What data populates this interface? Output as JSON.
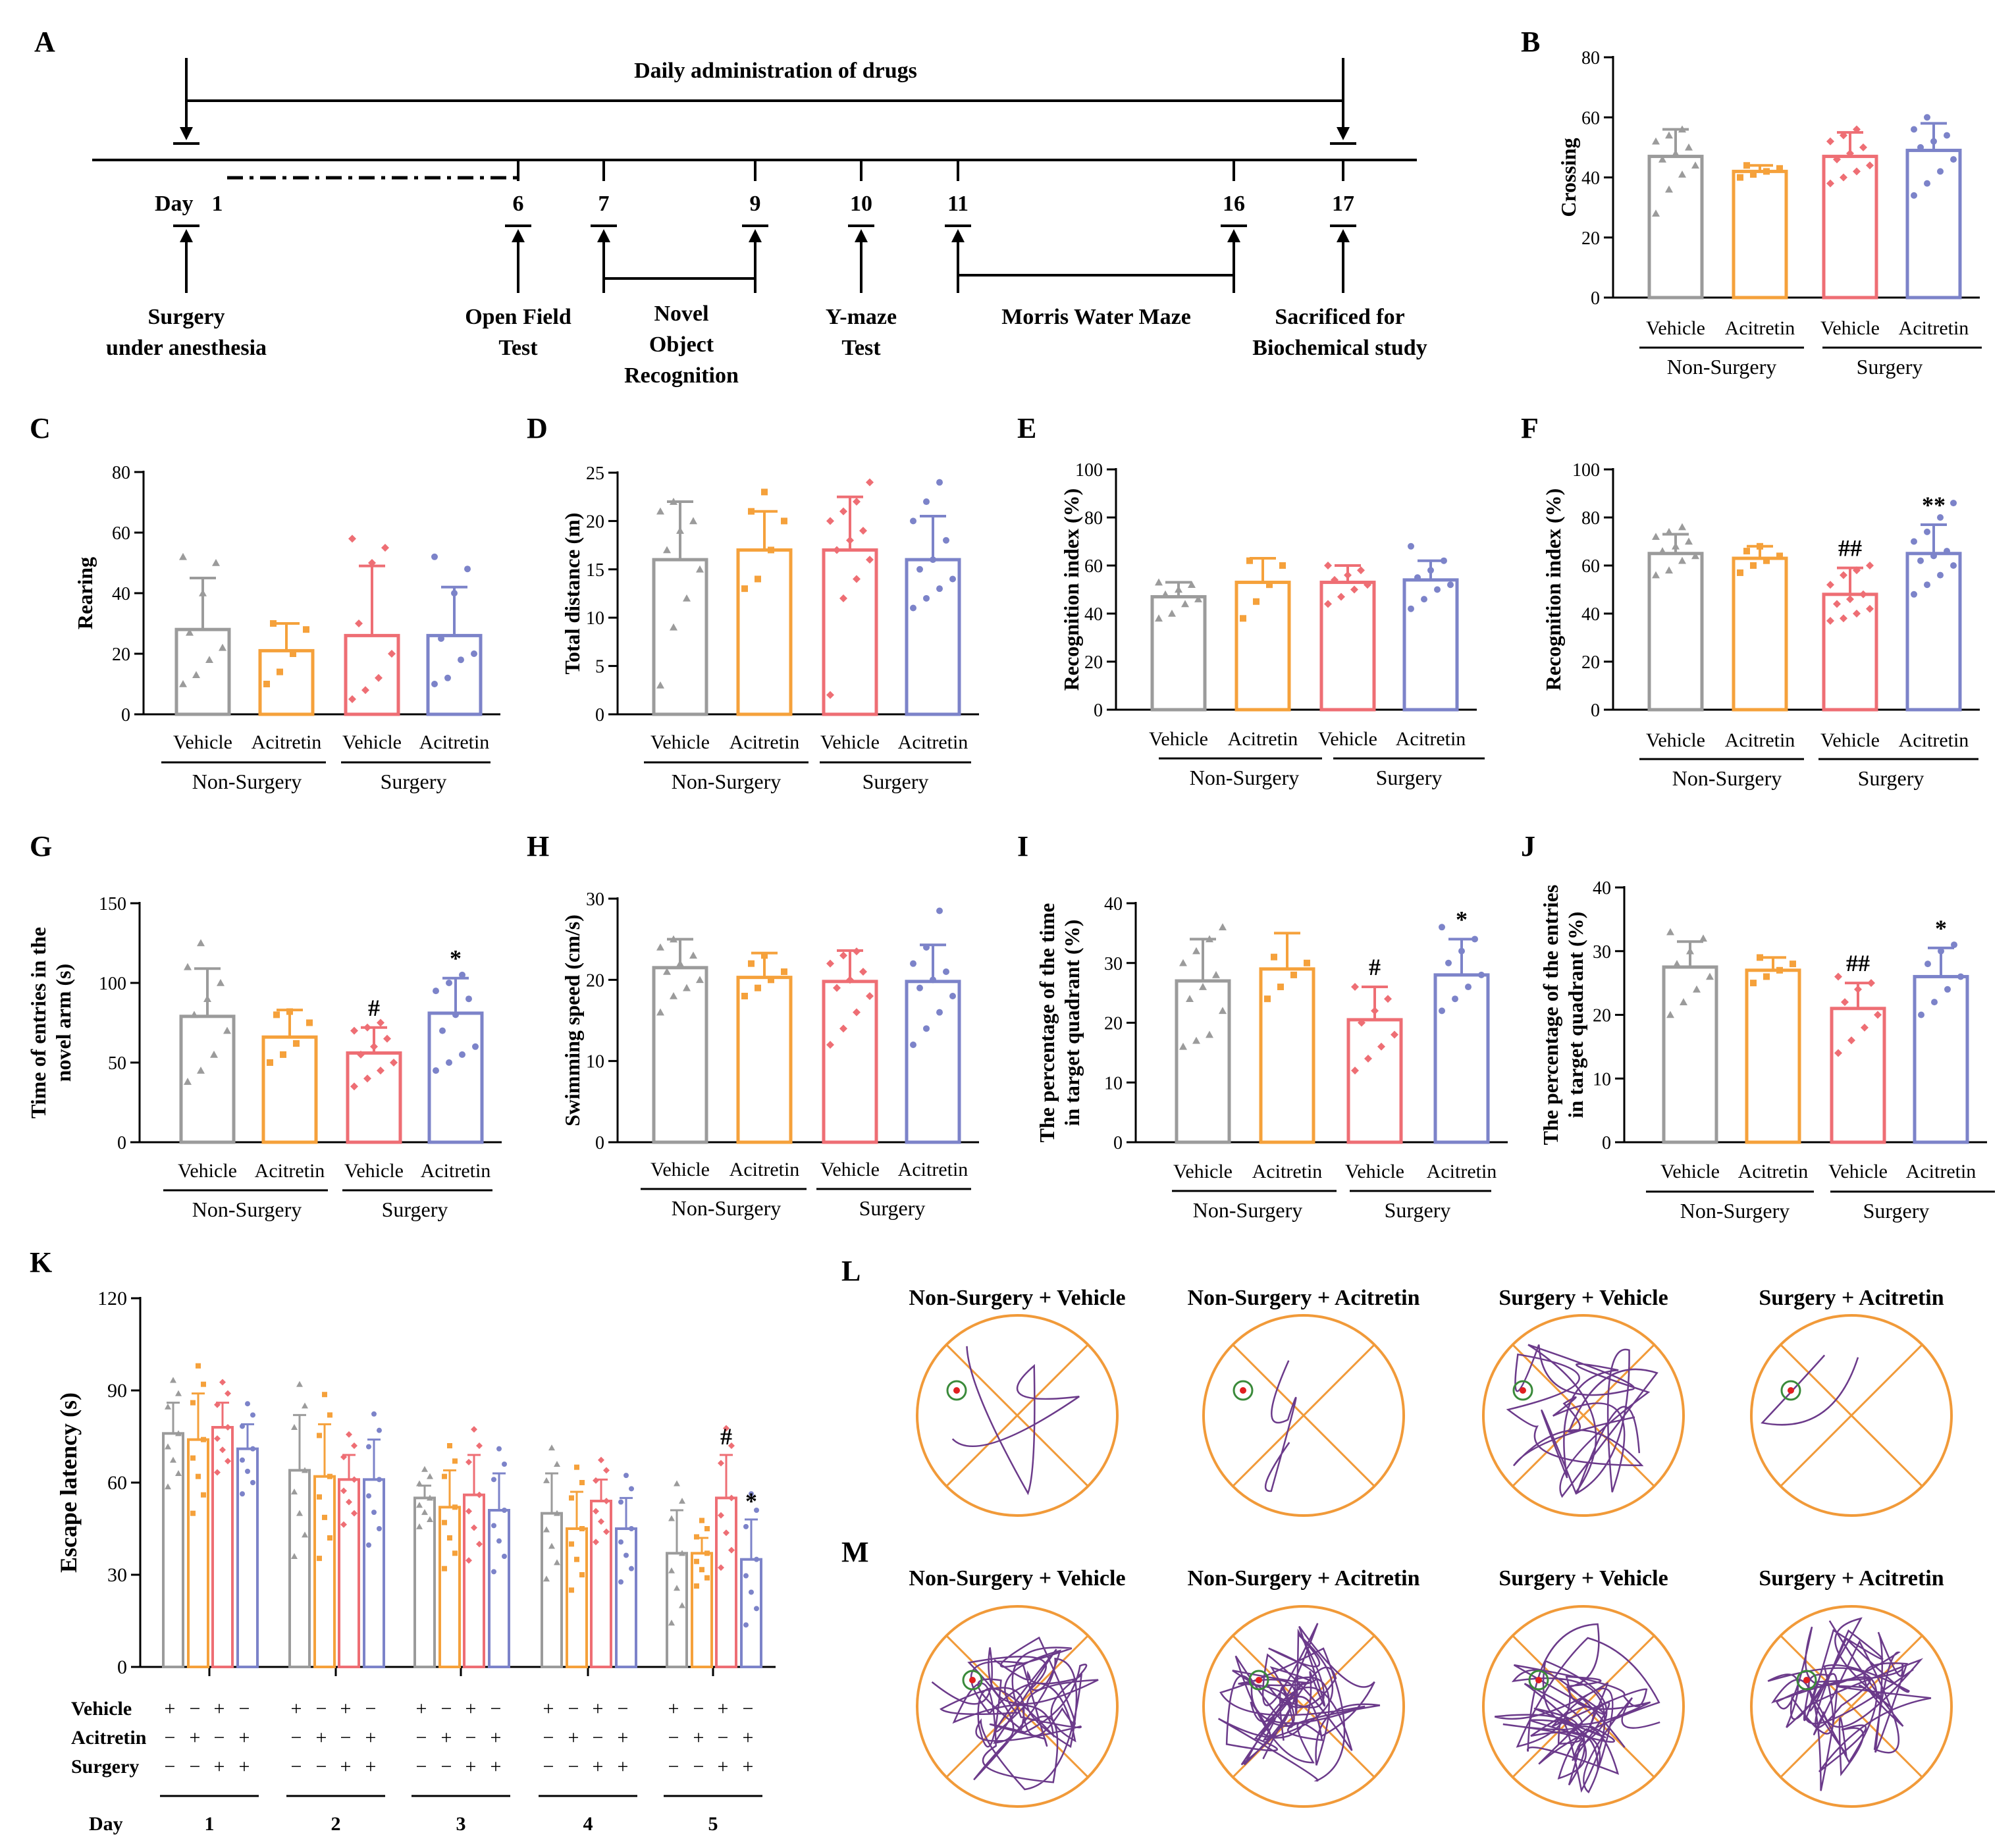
{
  "colors": {
    "grey": "#9b9b9b",
    "orange": "#f5a13b",
    "red": "#ee6e74",
    "blue": "#7c83c9",
    "maze": "#f19a39",
    "path": "#6b3a8a",
    "platform": "#3a8a3a"
  },
  "timeline": {
    "panel_letter": "A",
    "title": "Daily administration of drugs",
    "day_label": "Day",
    "days": [
      "1",
      "6",
      "7",
      "9",
      "10",
      "11",
      "16",
      "17"
    ],
    "events": [
      {
        "lines": [
          "Surgery",
          "under anesthesia"
        ]
      },
      {
        "lines": [
          "Open Field",
          "Test"
        ]
      },
      {
        "lines": [
          "Novel",
          "Object",
          "Recognition"
        ]
      },
      {
        "lines": [
          "Y-maze",
          "Test"
        ]
      },
      {
        "lines": [
          "Morris Water Maze"
        ]
      },
      {
        "lines": [
          "Sacrificed for",
          "Biochemical study"
        ]
      }
    ]
  },
  "group_labels": {
    "treatments": [
      "Vehicle",
      "Acitretin",
      "Vehicle",
      "Acitretin"
    ],
    "groups": [
      "Non-Surgery",
      "Surgery"
    ]
  },
  "chart_data": [
    {
      "panel": "B",
      "type": "bar",
      "ylabel": "Crossing",
      "ylim": [
        0,
        80
      ],
      "ticks": [
        0,
        20,
        40,
        60,
        80
      ],
      "categories": [
        "Vehicle",
        "Acitretin",
        "Vehicle",
        "Acitretin"
      ],
      "groups": [
        "Non-Surgery",
        "Surgery"
      ],
      "values": [
        47,
        42,
        47,
        49
      ],
      "errors": [
        9,
        2,
        8,
        9
      ],
      "annotations": [
        "",
        "",
        "",
        ""
      ],
      "points": [
        [
          28,
          36,
          41,
          44,
          46,
          48,
          50,
          52,
          54,
          56
        ],
        [
          40,
          41,
          42,
          43,
          44
        ],
        [
          38,
          40,
          42,
          44,
          46,
          48,
          50,
          52,
          54,
          56
        ],
        [
          34,
          38,
          42,
          46,
          50,
          52,
          54,
          56,
          60
        ]
      ]
    },
    {
      "panel": "C",
      "type": "bar",
      "ylabel": "Rearing",
      "ylim": [
        0,
        80
      ],
      "ticks": [
        0,
        20,
        40,
        60,
        80
      ],
      "categories": [
        "Vehicle",
        "Acitretin",
        "Vehicle",
        "Acitretin"
      ],
      "groups": [
        "Non-Surgery",
        "Surgery"
      ],
      "values": [
        28,
        21,
        26,
        26
      ],
      "errors": [
        17,
        9,
        23,
        16
      ],
      "annotations": [
        "",
        "",
        "",
        ""
      ],
      "points": [
        [
          10,
          13,
          18,
          22,
          27,
          40,
          50,
          52
        ],
        [
          10,
          14,
          20,
          28,
          30
        ],
        [
          5,
          8,
          12,
          20,
          30,
          50,
          55,
          58
        ],
        [
          10,
          12,
          18,
          20,
          25,
          40,
          48,
          52
        ]
      ]
    },
    {
      "panel": "D",
      "type": "bar",
      "ylabel": "Total distance (m)",
      "ylim": [
        0,
        25
      ],
      "ticks": [
        0,
        5,
        10,
        15,
        20,
        25
      ],
      "categories": [
        "Vehicle",
        "Acitretin",
        "Vehicle",
        "Acitretin"
      ],
      "groups": [
        "Non-Surgery",
        "Surgery"
      ],
      "values": [
        16,
        17,
        17,
        16
      ],
      "errors": [
        6,
        4,
        5.5,
        4.5
      ],
      "annotations": [
        "",
        "",
        "",
        ""
      ],
      "points": [
        [
          3,
          9,
          12,
          15,
          17,
          19,
          20,
          21,
          22
        ],
        [
          13,
          14,
          17,
          20,
          21,
          23
        ],
        [
          2,
          12,
          14,
          16,
          17,
          18,
          19,
          20,
          21,
          22,
          24
        ],
        [
          11,
          12,
          13,
          14,
          15,
          16,
          18,
          20,
          22,
          24
        ]
      ]
    },
    {
      "panel": "E",
      "type": "bar",
      "ylabel": "Recognition index (%)",
      "ylim": [
        0,
        100
      ],
      "ticks": [
        0,
        20,
        40,
        60,
        80,
        100
      ],
      "categories": [
        "Vehicle",
        "Acitretin",
        "Vehicle",
        "Acitretin"
      ],
      "groups": [
        "Non-Surgery",
        "Surgery"
      ],
      "values": [
        47,
        53,
        53,
        54
      ],
      "errors": [
        6,
        10,
        7,
        8
      ],
      "annotations": [
        "",
        "",
        "",
        ""
      ],
      "points": [
        [
          38,
          40,
          44,
          46,
          48,
          50,
          52,
          53
        ],
        [
          38,
          45,
          52,
          60,
          62
        ],
        [
          44,
          47,
          50,
          52,
          54,
          56,
          58,
          60
        ],
        [
          42,
          46,
          50,
          52,
          55,
          58,
          62,
          68
        ]
      ]
    },
    {
      "panel": "F",
      "type": "bar",
      "ylabel": "Recognition index (%)",
      "ylim": [
        0,
        100
      ],
      "ticks": [
        0,
        20,
        40,
        60,
        80,
        100
      ],
      "categories": [
        "Vehicle",
        "Acitretin",
        "Vehicle",
        "Acitretin"
      ],
      "groups": [
        "Non-Surgery",
        "Surgery"
      ],
      "values": [
        65,
        63,
        48,
        65
      ],
      "errors": [
        8,
        5,
        11,
        12
      ],
      "annotations": [
        "",
        "",
        "##",
        "**"
      ],
      "points": [
        [
          56,
          58,
          62,
          64,
          66,
          68,
          70,
          72,
          74,
          76
        ],
        [
          57,
          60,
          62,
          64,
          66,
          68
        ],
        [
          37,
          38,
          40,
          42,
          44,
          46,
          48,
          52,
          56,
          58,
          60
        ],
        [
          48,
          52,
          56,
          60,
          62,
          64,
          66,
          70,
          74,
          80,
          86
        ]
      ]
    },
    {
      "panel": "G",
      "type": "bar",
      "ylabel": [
        "Time of entries in the",
        "novel arm (s)"
      ],
      "ylim": [
        0,
        150
      ],
      "ticks": [
        0,
        50,
        100,
        150
      ],
      "categories": [
        "Vehicle",
        "Acitretin",
        "Vehicle",
        "Acitretin"
      ],
      "groups": [
        "Non-Surgery",
        "Surgery"
      ],
      "values": [
        79,
        66,
        56,
        81
      ],
      "errors": [
        30,
        17,
        16,
        22
      ],
      "annotations": [
        "",
        "",
        "#",
        "*"
      ],
      "points": [
        [
          38,
          45,
          55,
          70,
          80,
          90,
          100,
          110,
          125
        ],
        [
          50,
          55,
          62,
          75,
          80,
          82
        ],
        [
          35,
          40,
          45,
          50,
          55,
          60,
          65,
          70,
          72,
          75
        ],
        [
          45,
          50,
          55,
          60,
          70,
          80,
          90,
          95,
          100,
          105
        ]
      ]
    },
    {
      "panel": "H",
      "type": "bar",
      "ylabel": "Swimming speed (cm/s)",
      "ylim": [
        0,
        30
      ],
      "ticks": [
        0,
        10,
        20,
        30
      ],
      "categories": [
        "Vehicle",
        "Acitretin",
        "Vehicle",
        "Acitretin"
      ],
      "groups": [
        "Non-Surgery",
        "Surgery"
      ],
      "values": [
        21.5,
        20.3,
        19.8,
        19.8
      ],
      "errors": [
        3.5,
        3,
        3.8,
        4.5
      ],
      "annotations": [
        "",
        "",
        "",
        ""
      ],
      "points": [
        [
          16,
          18,
          19,
          20,
          21,
          22,
          23,
          24,
          25
        ],
        [
          18,
          19,
          20,
          21,
          22,
          23
        ],
        [
          12,
          14,
          16,
          18,
          19,
          20,
          21,
          22,
          23,
          23.5
        ],
        [
          12,
          14,
          16,
          18,
          19,
          20,
          21,
          22,
          24,
          28.5
        ]
      ]
    },
    {
      "panel": "I",
      "type": "bar",
      "ylabel": [
        "The percentage of the time",
        "in target quadrant (%)"
      ],
      "ylim": [
        0,
        40
      ],
      "ticks": [
        0,
        10,
        20,
        30,
        40
      ],
      "categories": [
        "Vehicle",
        "Acitretin",
        "Vehicle",
        "Acitretin"
      ],
      "groups": [
        "Non-Surgery",
        "Surgery"
      ],
      "values": [
        27,
        29,
        20.5,
        28
      ],
      "errors": [
        7,
        6,
        5.5,
        6
      ],
      "annotations": [
        "",
        "",
        "#",
        "*"
      ],
      "points": [
        [
          16,
          17,
          18,
          22,
          24,
          26,
          28,
          30,
          32,
          34,
          36
        ],
        [
          24,
          26,
          28,
          30,
          31
        ],
        [
          12,
          14,
          16,
          18,
          20,
          22,
          24,
          26
        ],
        [
          22,
          24,
          26,
          28,
          30,
          32,
          34,
          36
        ]
      ]
    },
    {
      "panel": "J",
      "type": "bar",
      "ylabel": [
        "The percentage of the entries",
        "in target quadrant (%)"
      ],
      "ylim": [
        0,
        40
      ],
      "ticks": [
        0,
        10,
        20,
        30,
        40
      ],
      "categories": [
        "Vehicle",
        "Acitretin",
        "Vehicle",
        "Acitretin"
      ],
      "groups": [
        "Non-Surgery",
        "Surgery"
      ],
      "values": [
        27.5,
        27,
        21,
        26
      ],
      "errors": [
        4,
        2,
        4,
        4.5
      ],
      "annotations": [
        "",
        "",
        "##",
        "*"
      ],
      "points": [
        [
          20,
          22,
          24,
          26,
          28,
          30,
          32,
          33
        ],
        [
          25,
          26,
          27,
          28,
          29
        ],
        [
          14,
          16,
          18,
          20,
          22,
          24,
          25,
          26
        ],
        [
          20,
          22,
          24,
          26,
          28,
          30,
          31
        ]
      ]
    },
    {
      "panel": "K",
      "type": "bar",
      "ylabel": "Escape latency (s)",
      "ylim": [
        0,
        120
      ],
      "ticks": [
        0,
        30,
        60,
        90,
        120
      ],
      "xlabel": "Day",
      "days": [
        "1",
        "2",
        "3",
        "4",
        "5"
      ],
      "series": [
        {
          "name": "Non-Surgery + Vehicle",
          "values": [
            76,
            64,
            55,
            50,
            37
          ],
          "errors": [
            10,
            18,
            4,
            13,
            14
          ]
        },
        {
          "name": "Non-Surgery + Acitretin",
          "values": [
            74,
            62,
            52,
            45,
            37
          ],
          "errors": [
            15,
            17,
            12,
            12,
            5
          ]
        },
        {
          "name": "Surgery + Vehicle",
          "values": [
            78,
            61,
            56,
            54,
            55
          ],
          "errors": [
            8,
            8,
            13,
            7,
            14
          ]
        },
        {
          "name": "Surgery + Acitretin",
          "values": [
            71,
            61,
            51,
            45,
            35
          ],
          "errors": [
            8,
            13,
            12,
            10,
            13
          ]
        }
      ],
      "annotations": [
        {
          "day": "5",
          "series": 2,
          "text": "#"
        },
        {
          "day": "5",
          "series": 3,
          "text": "*"
        }
      ],
      "factor_rows": [
        {
          "label": "Vehicle",
          "signs": [
            "+",
            "−",
            "+",
            "−"
          ]
        },
        {
          "label": "Acitretin",
          "signs": [
            "−",
            "+",
            "−",
            "+"
          ]
        },
        {
          "label": "Surgery",
          "signs": [
            "−",
            "−",
            "+",
            "+"
          ]
        }
      ]
    }
  ],
  "tracks": {
    "L": {
      "panel_letter": "L",
      "titles": [
        "Non-Surgery + Vehicle",
        "Non-Surgery + Acitretin",
        "Surgery + Vehicle",
        "Surgery + Acitretin"
      ]
    },
    "M": {
      "panel_letter": "M",
      "titles": [
        "Non-Surgery + Vehicle",
        "Non-Surgery + Acitretin",
        "Surgery + Vehicle",
        "Surgery + Acitretin"
      ]
    }
  }
}
